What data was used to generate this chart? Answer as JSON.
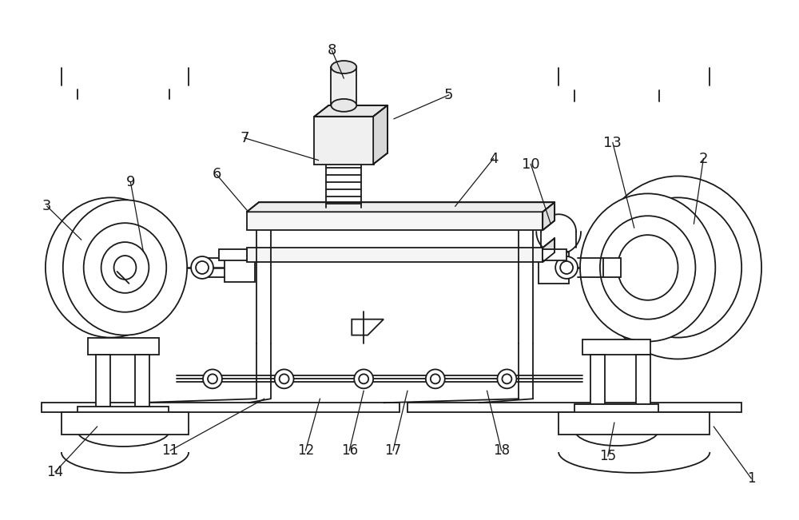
{
  "background_color": "#ffffff",
  "line_color": "#1a1a1a",
  "line_width": 1.3,
  "fig_width": 10.0,
  "fig_height": 6.51
}
